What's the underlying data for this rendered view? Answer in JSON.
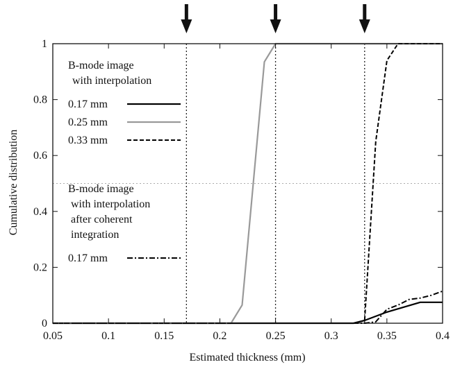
{
  "chart_data": {
    "type": "line",
    "title": "",
    "xlabel": "Estimated thickness (mm)",
    "ylabel": "Cumulative distribution",
    "xlim": [
      0.05,
      0.4
    ],
    "ylim": [
      0,
      1
    ],
    "xticks": [
      "0.05",
      "0.1",
      "0.15",
      "0.2",
      "0.25",
      "0.3",
      "0.35",
      "0.4"
    ],
    "yticks": [
      "0",
      "0.2",
      "0.4",
      "0.6",
      "0.8",
      "1"
    ],
    "grid": false,
    "reference_lines": {
      "vertical": [
        0.17,
        0.25,
        0.33
      ],
      "horizontal": [
        0.5
      ]
    },
    "arrows_at_x": [
      0.17,
      0.25,
      0.33
    ],
    "legend": {
      "group1_title": [
        "B-mode image",
        "with interpolation"
      ],
      "group2_title": [
        "B-mode image",
        "with interpolation",
        "after coherent",
        "integration"
      ],
      "placement": "left"
    },
    "series": [
      {
        "name": "0.17 mm",
        "group": 1,
        "color": "#000000",
        "dash": "solid",
        "points": [
          [
            0.05,
            0
          ],
          [
            0.32,
            0
          ],
          [
            0.33,
            0.01
          ],
          [
            0.35,
            0.04
          ],
          [
            0.38,
            0.075
          ],
          [
            0.4,
            0.075
          ]
        ]
      },
      {
        "name": "0.25 mm",
        "group": 1,
        "color": "#999999",
        "dash": "solid",
        "points": [
          [
            0.05,
            0
          ],
          [
            0.21,
            0
          ],
          [
            0.22,
            0.065
          ],
          [
            0.24,
            0.935
          ],
          [
            0.25,
            1
          ],
          [
            0.4,
            1
          ]
        ]
      },
      {
        "name": "0.33 mm",
        "group": 1,
        "color": "#000000",
        "dash": "dashed",
        "points": [
          [
            0.05,
            0
          ],
          [
            0.32,
            0
          ],
          [
            0.33,
            0.01
          ],
          [
            0.34,
            0.65
          ],
          [
            0.35,
            0.94
          ],
          [
            0.36,
            1
          ],
          [
            0.4,
            1
          ]
        ]
      },
      {
        "name": "0.17 mm",
        "group": 2,
        "color": "#000000",
        "dash": "dashdot",
        "points": [
          [
            0.05,
            0
          ],
          [
            0.33,
            0
          ],
          [
            0.34,
            0.005
          ],
          [
            0.35,
            0.05
          ],
          [
            0.36,
            0.065
          ],
          [
            0.37,
            0.085
          ],
          [
            0.38,
            0.09
          ],
          [
            0.39,
            0.1
          ],
          [
            0.4,
            0.115
          ]
        ]
      }
    ]
  }
}
